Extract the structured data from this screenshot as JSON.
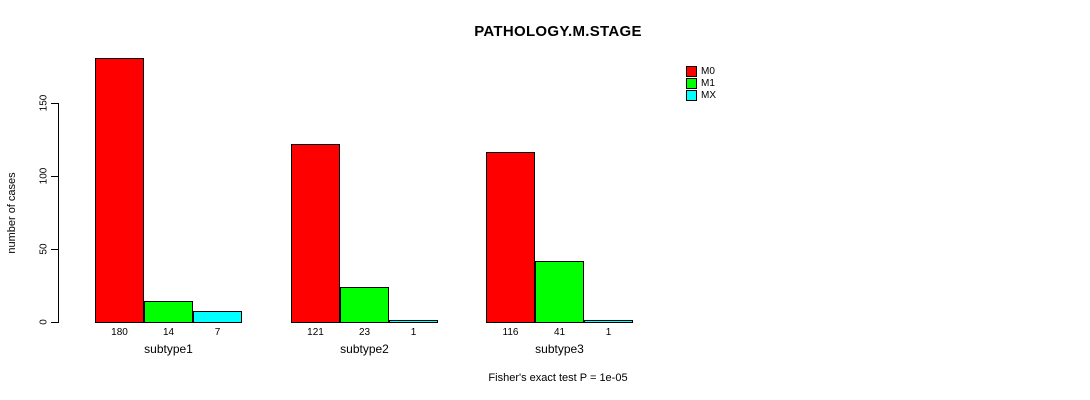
{
  "title": "PATHOLOGY.M.STAGE",
  "chart_data": {
    "type": "bar",
    "title": "PATHOLOGY.M.STAGE",
    "xlabel": "",
    "ylabel": "number of cases",
    "categories": [
      "subtype1",
      "subtype2",
      "subtype3"
    ],
    "series": [
      {
        "name": "M0",
        "color": "#ff0000",
        "values": [
          180,
          121,
          116
        ]
      },
      {
        "name": "M1",
        "color": "#00ff00",
        "values": [
          14,
          23,
          41
        ]
      },
      {
        "name": "MX",
        "color": "#00ffff",
        "values": [
          7,
          1,
          1
        ]
      }
    ],
    "bar_value_labels": [
      [
        "180",
        "14",
        "7"
      ],
      [
        "121",
        "23",
        "1"
      ],
      [
        "116",
        "41",
        "1"
      ]
    ],
    "y_ticks": [
      "0",
      "50",
      "100",
      "150"
    ],
    "ylim": [
      0,
      150
    ],
    "grid": false,
    "bar_edge_color": "#000000",
    "background_color": "#ffffff",
    "legend_position": "top-right",
    "legend_entries": [
      "M0",
      "M1",
      "MX"
    ],
    "annotation": "Fisher's exact test P = 1e-05"
  }
}
